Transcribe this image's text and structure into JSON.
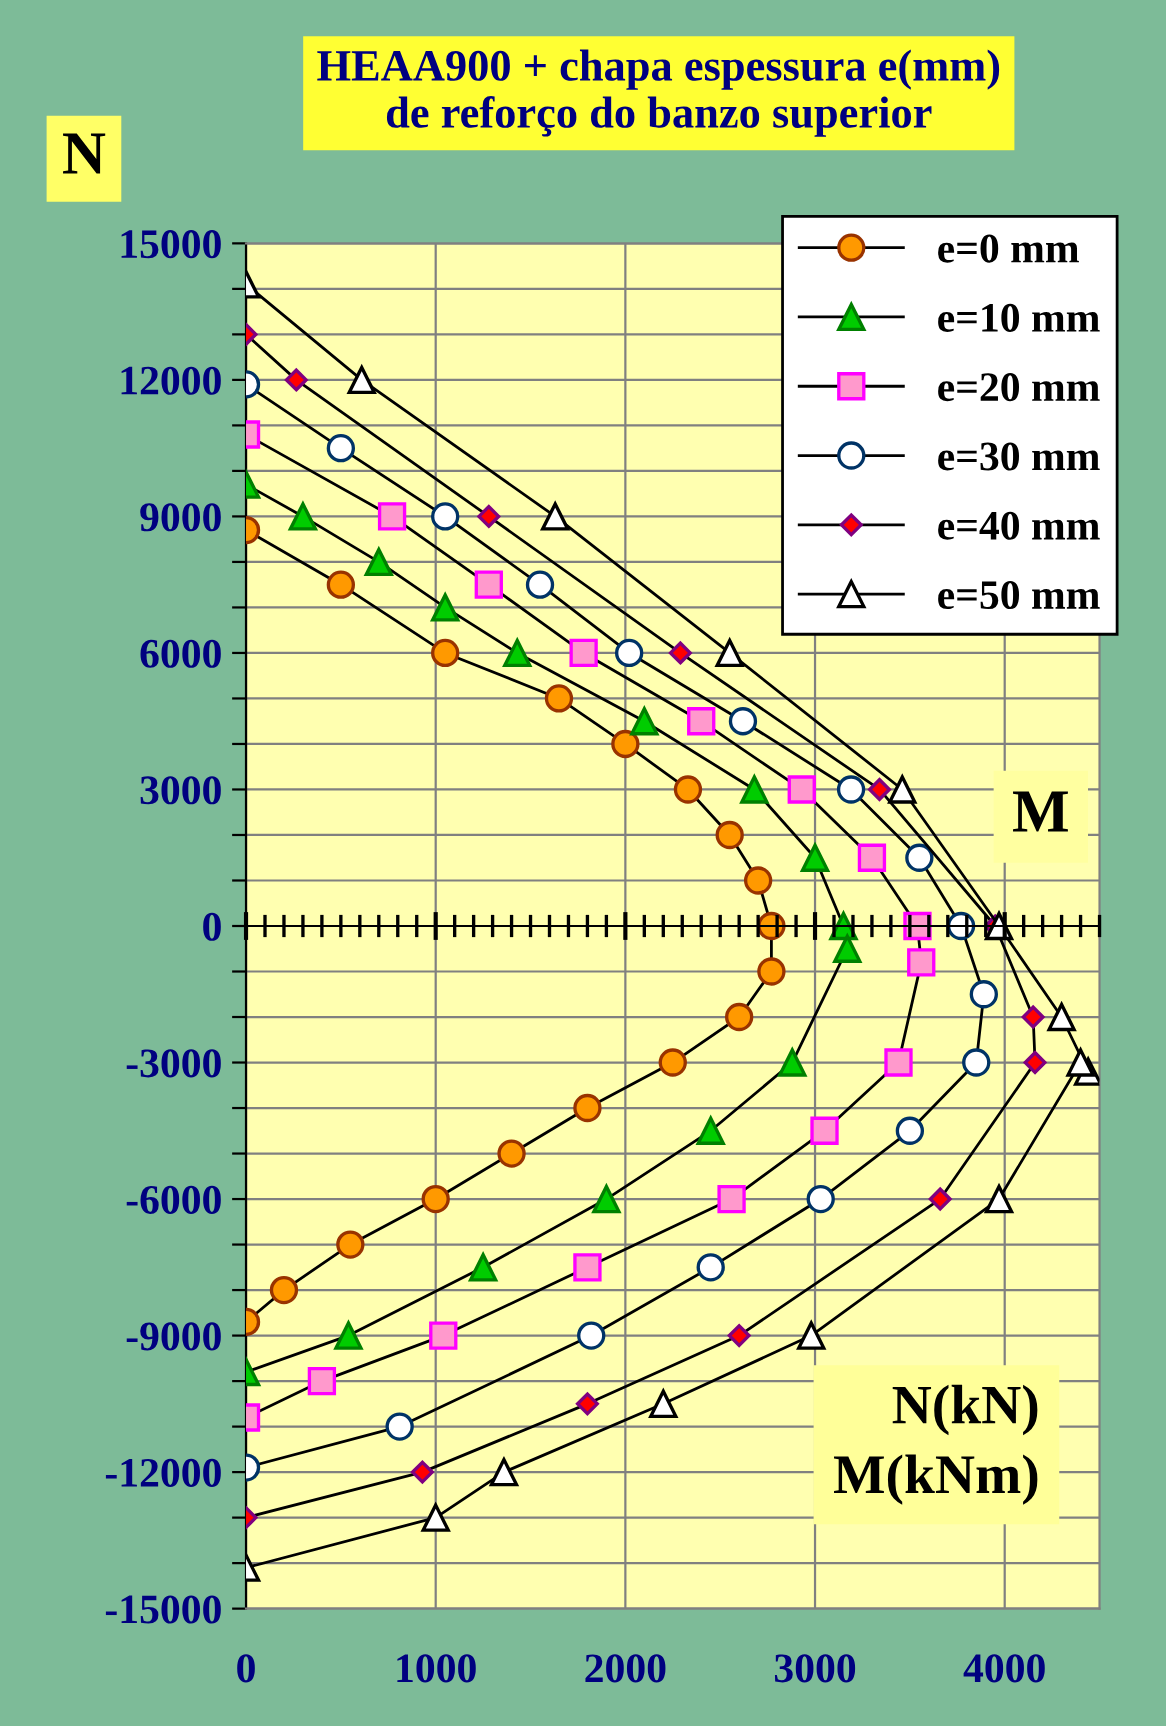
{
  "chart_data": {
    "type": "line",
    "title": "HEAA900 + chapa espessura e(mm)\nde reforço do banzo superior",
    "xlabel": "M",
    "ylabel": "N",
    "annotations": [
      "N(kN)\nM(kNm)"
    ],
    "xlim": [
      0,
      4500
    ],
    "xticks": [
      0,
      1000,
      2000,
      3000,
      4000
    ],
    "ylim": [
      -15000,
      15000
    ],
    "yticks": [
      -15000,
      {
        "value": -14000,
        "label": null
      },
      {
        "value": -13000,
        "label": null
      },
      -12000,
      {
        "value": -11000,
        "label": null
      },
      {
        "value": -10000,
        "label": null
      },
      -9000,
      {
        "value": -8000,
        "label": null
      },
      {
        "value": -7000,
        "label": null
      },
      -6000,
      {
        "value": -5000,
        "label": null
      },
      {
        "value": -4000,
        "label": null
      },
      -3000,
      {
        "value": -2000,
        "label": null
      },
      {
        "value": -1000,
        "label": null
      },
      0,
      {
        "value": 1000,
        "label": null
      },
      {
        "value": 2000,
        "label": null
      },
      3000,
      {
        "value": 4000,
        "label": null
      },
      {
        "value": 5000,
        "label": null
      },
      6000,
      {
        "value": 7000,
        "label": null
      },
      {
        "value": 8000,
        "label": null
      },
      9000,
      {
        "value": 10000,
        "label": null
      },
      {
        "value": 11000,
        "label": null
      },
      12000,
      {
        "value": 13000,
        "label": null
      },
      {
        "value": 14000,
        "label": null
      },
      15000
    ],
    "grid": true,
    "legend": "top right",
    "series": [
      {
        "name": "e=0 mm",
        "color": "#ff9900",
        "marker": "circle",
        "x": [
          0,
          500,
          1050,
          1650,
          2000,
          2330,
          2550,
          2700,
          2770,
          2770,
          2600,
          2250,
          1800,
          1400,
          1000,
          550,
          200,
          0
        ],
        "values": [
          8700,
          7500,
          6000,
          5000,
          4000,
          3000,
          2000,
          1000,
          0,
          -1000,
          -2000,
          -3000,
          -4000,
          -5000,
          -6000,
          -7000,
          -8000,
          -8700
        ]
      },
      {
        "name": "e=10 mm",
        "color": "#00cc00",
        "marker": "triangle",
        "x": [
          0,
          300,
          700,
          1050,
          1430,
          2100,
          2680,
          3000,
          3150,
          3170,
          2880,
          2450,
          1900,
          1250,
          540,
          0
        ],
        "values": [
          9700,
          9000,
          8000,
          7000,
          6000,
          4500,
          3000,
          1500,
          0,
          -500,
          -3000,
          -4500,
          -6000,
          -7500,
          -9000,
          -9800
        ]
      },
      {
        "name": "e=20 mm",
        "color": "#ff99cc",
        "marker": "square",
        "x": [
          0,
          770,
          1280,
          1780,
          2400,
          2930,
          3300,
          3540,
          3560,
          3440,
          3050,
          2560,
          1800,
          1040,
          400,
          0
        ],
        "values": [
          10800,
          9000,
          7500,
          6000,
          4500,
          3000,
          1500,
          0,
          -800,
          -3000,
          -4500,
          -6000,
          -7500,
          -9000,
          -10000,
          -10800
        ]
      },
      {
        "name": "e=30 mm",
        "color": "#ffffff",
        "marker": "circle",
        "x": [
          0,
          500,
          1050,
          1550,
          2020,
          2620,
          3190,
          3550,
          3770,
          3890,
          3850,
          3500,
          3030,
          2450,
          1820,
          810,
          0
        ],
        "values": [
          11900,
          10500,
          9000,
          7500,
          6000,
          4500,
          3000,
          1500,
          0,
          -1500,
          -3000,
          -4500,
          -6000,
          -7500,
          -9000,
          -11000,
          -11900
        ]
      },
      {
        "name": "e=40 mm",
        "color": "#ff0000",
        "marker": "diamond",
        "x": [
          0,
          265,
          1280,
          2290,
          3340,
          3950,
          4150,
          4160,
          3660,
          2600,
          1800,
          930,
          0
        ],
        "values": [
          13000,
          12000,
          9000,
          6000,
          3000,
          0,
          -2000,
          -3000,
          -6000,
          -9000,
          -10500,
          -12000,
          -13000
        ]
      },
      {
        "name": "e=50 mm",
        "color": "#ffffff",
        "marker": "triangle",
        "x": [
          0,
          610,
          1630,
          2550,
          3460,
          3970,
          4300,
          4440,
          4400,
          3970,
          2980,
          2200,
          1360,
          1000,
          0
        ],
        "values": [
          14100,
          12000,
          9000,
          6000,
          3000,
          0,
          -2000,
          -3200,
          -3000,
          -6000,
          -9000,
          -10500,
          -12000,
          -13000,
          -14100
        ]
      }
    ]
  }
}
